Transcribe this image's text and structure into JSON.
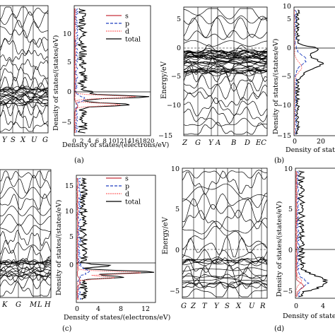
{
  "panels": [
    {
      "id": "a",
      "label": "(a)",
      "band": {
        "kpath": [
          "Y",
          "S",
          "X",
          "U",
          "G"
        ],
        "kvisible": [
          0,
          1,
          2,
          3,
          4
        ],
        "ylim": [
          -8,
          15
        ],
        "ticks": [],
        "ylabel": ""
      },
      "dos": {
        "ylabel": "Density of states/(states/eV)",
        "xlabel": "Density of states/(electrons/eV)",
        "xticks": [
          "0",
          "2",
          "4",
          "6",
          "8",
          "10",
          "12",
          "14",
          "16",
          "18",
          "20"
        ],
        "xlim": [
          0,
          20
        ],
        "yticks": [
          "−5",
          "0",
          "5",
          "10"
        ],
        "ylim": [
          -8,
          15
        ],
        "legend": [
          "s",
          "p",
          "d",
          "total"
        ]
      }
    },
    {
      "id": "b",
      "label": "(b)",
      "band": {
        "kpath": [
          "Z",
          "G",
          "Y",
          "A",
          "B",
          "D",
          "EC"
        ],
        "ylim": [
          -15,
          7
        ],
        "ticks": [
          "−15",
          "−10",
          "−5",
          "0",
          "5"
        ],
        "ylabel": "Energy/eV"
      },
      "dos": {
        "ylabel": "Density of states/(states/eV)",
        "xlabel": "Density of states/",
        "xticks": [
          "0",
          "20"
        ],
        "xlim": [
          0,
          40
        ],
        "yticks": [
          "−15",
          "−10",
          "−5",
          "0",
          "5",
          "10"
        ],
        "ylim": [
          -15,
          15
        ]
      }
    },
    {
      "id": "c",
      "label": "(c)",
      "band": {
        "kpath": [
          "K",
          "G",
          "M",
          "L",
          "H"
        ],
        "ylim": [
          -6,
          15
        ],
        "ticks": [],
        "ylabel": ""
      },
      "dos": {
        "ylabel": "Density of states/(states/eV)",
        "xlabel": "Density of states/(electrons/eV)",
        "xticks": [
          "0",
          "4",
          "8",
          "12"
        ],
        "xlim": [
          0,
          14
        ],
        "yticks": [
          "0",
          "5",
          "10",
          "15"
        ],
        "ylim": [
          -6,
          18
        ],
        "legend": [
          "s",
          "p",
          "d",
          "total"
        ]
      }
    },
    {
      "id": "d",
      "label": "(d)",
      "band": {
        "kpath": [
          "G",
          "Z",
          "T",
          "Y",
          "S",
          "X",
          "U",
          "R"
        ],
        "ylim": [
          -6,
          10
        ],
        "ticks": [
          "−5",
          "0",
          "5",
          "10"
        ],
        "ylabel": "Energy/eV"
      },
      "dos": {
        "ylabel": "Density of states/(states/eV)",
        "xlabel": "Density of states/",
        "xticks": [
          "0",
          "4"
        ],
        "xlim": [
          0,
          6
        ],
        "yticks": [
          "−5",
          "0",
          "5",
          "10"
        ],
        "ylim": [
          -6,
          10
        ]
      }
    }
  ],
  "legend": {
    "s": "s",
    "p": "p",
    "d": "d",
    "total": "total"
  },
  "colors": {
    "s": "#c8323c",
    "p": "#1f3fbf",
    "d": "#ff6a6a",
    "total": "#000000"
  },
  "chart_data": [
    {
      "type": "line",
      "panel": "a-dos",
      "xlabel": "Density of states/(electrons/eV)",
      "ylabel": "Density of states/(states/eV)",
      "xlim": [
        0,
        20
      ],
      "ylim": [
        -8,
        15
      ],
      "series": [
        {
          "name": "total",
          "peaks": [
            [
              -1,
              19
            ],
            [
              -2,
              16
            ],
            [
              0,
              2
            ]
          ]
        },
        {
          "name": "d",
          "peaks": [
            [
              -1,
              18
            ],
            [
              -2,
              15
            ]
          ]
        }
      ]
    },
    {
      "type": "line",
      "panel": "c-dos",
      "xlabel": "Density of states/(electrons/eV)",
      "ylabel": "Density of states/(states/eV)",
      "xlim": [
        0,
        14
      ],
      "ylim": [
        -6,
        18
      ],
      "series": [
        {
          "name": "total",
          "peaks": [
            [
              -2.5,
              13
            ],
            [
              -1.5,
              10
            ]
          ]
        },
        {
          "name": "d",
          "peaks": [
            [
              -2.5,
              12
            ]
          ]
        }
      ]
    }
  ]
}
